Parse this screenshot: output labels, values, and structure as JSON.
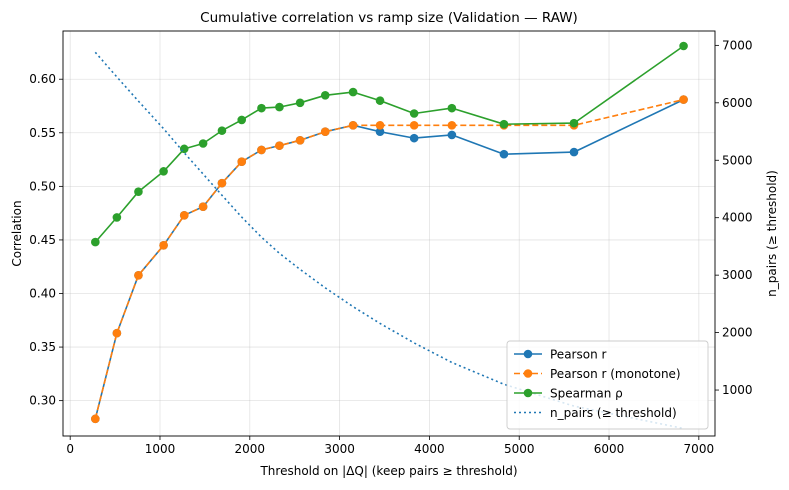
{
  "chart_data": {
    "type": "line",
    "title": "Cumulative correlation vs ramp size (Validation — RAW)",
    "xlabel": "Threshold on |ΔQ|  (keep pairs ≥ threshold)",
    "ylabel": "Correlation",
    "y2label": "n_pairs (≥ threshold)",
    "xlim": [
      -80,
      7180
    ],
    "ylim": [
      0.267,
      0.645
    ],
    "y2lim": [
      200,
      7250
    ],
    "xticks": [
      0,
      1000,
      2000,
      3000,
      4000,
      5000,
      6000,
      7000
    ],
    "yticks": [
      0.3,
      0.35,
      0.4,
      0.45,
      0.5,
      0.55,
      0.6
    ],
    "y2ticks": [
      1000,
      2000,
      3000,
      4000,
      5000,
      6000,
      7000
    ],
    "grid": true,
    "legend_position": "lower-right",
    "series": [
      {
        "name": "Pearson r",
        "axis": "left",
        "style": "solid",
        "marker": "circle",
        "color": "#1f77b4",
        "x": [
          280,
          520,
          760,
          1040,
          1270,
          1480,
          1690,
          1910,
          2130,
          2330,
          2560,
          2840,
          3150,
          3450,
          3830,
          4250,
          4830,
          5610,
          6830
        ],
        "values": [
          0.283,
          0.363,
          0.417,
          0.445,
          0.473,
          0.481,
          0.503,
          0.523,
          0.534,
          0.538,
          0.543,
          0.551,
          0.557,
          0.551,
          0.545,
          0.548,
          0.53,
          0.532,
          0.581
        ]
      },
      {
        "name": "Pearson r (monotone)",
        "axis": "left",
        "style": "dashed",
        "marker": "circle",
        "color": "#ff7f0e",
        "x": [
          280,
          520,
          760,
          1040,
          1270,
          1480,
          1690,
          1910,
          2130,
          2330,
          2560,
          2840,
          3150,
          3450,
          3830,
          4250,
          4830,
          5610,
          6830
        ],
        "values": [
          0.283,
          0.363,
          0.417,
          0.445,
          0.473,
          0.481,
          0.503,
          0.523,
          0.534,
          0.538,
          0.543,
          0.551,
          0.557,
          0.557,
          0.557,
          0.557,
          0.557,
          0.557,
          0.581
        ]
      },
      {
        "name": "Spearman ρ",
        "axis": "left",
        "style": "solid",
        "marker": "circle",
        "color": "#2ca02c",
        "x": [
          280,
          520,
          760,
          1040,
          1270,
          1480,
          1690,
          1910,
          2130,
          2330,
          2560,
          2840,
          3150,
          3450,
          3830,
          4250,
          4830,
          5610,
          6830
        ],
        "values": [
          0.448,
          0.471,
          0.495,
          0.514,
          0.535,
          0.54,
          0.552,
          0.562,
          0.573,
          0.574,
          0.578,
          0.585,
          0.588,
          0.58,
          0.568,
          0.573,
          0.558,
          0.559,
          0.631
        ]
      },
      {
        "name": "n_pairs (≥ threshold)",
        "axis": "right",
        "style": "dotted",
        "marker": "none",
        "color": "#1f77b4",
        "x": [
          280,
          520,
          760,
          1040,
          1270,
          1480,
          1690,
          1910,
          2130,
          2330,
          2560,
          2840,
          3150,
          3450,
          3830,
          4250,
          4830,
          5610,
          6830
        ],
        "values": [
          6880,
          6450,
          6030,
          5550,
          5130,
          4760,
          4390,
          4010,
          3660,
          3380,
          3100,
          2780,
          2450,
          2160,
          1820,
          1480,
          1100,
          720,
          330
        ]
      }
    ]
  }
}
